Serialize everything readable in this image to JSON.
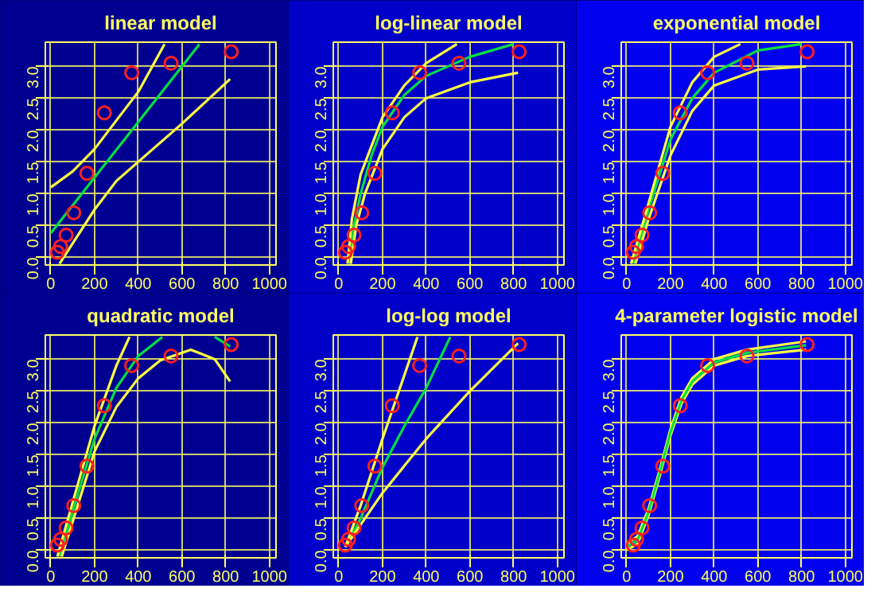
{
  "chart_data": [
    {
      "type": "line",
      "title": "linear model",
      "xlim": [
        -25,
        1030
      ],
      "ylim": [
        -0.12,
        3.38
      ],
      "xticks": [
        0,
        200,
        400,
        600,
        800,
        1000
      ],
      "yticks": [
        {
          "value": 0,
          "label": "0.0"
        },
        0.5,
        {
          "value": 1,
          "label": "1.0"
        },
        1.5,
        {
          "value": 2,
          "label": "2.0"
        },
        2.5,
        {
          "value": 3,
          "label": "3.0"
        }
      ],
      "grid": true,
      "series": [
        {
          "type": "scatter",
          "marker": "circle",
          "color": "#ff2020",
          "x": [
            30,
            45,
            70,
            105,
            165,
            245,
            370,
            550,
            825
          ],
          "values": [
            0.08,
            0.17,
            0.35,
            0.7,
            1.32,
            2.27,
            2.9,
            3.05,
            3.23
          ]
        },
        {
          "color": "#00e040",
          "x": [
            0,
            680
          ],
          "values": [
            0.38,
            3.35
          ]
        },
        {
          "color": "#ffff40",
          "x": [
            0,
            100,
            200,
            300,
            400,
            520
          ],
          "values": [
            1.1,
            1.35,
            1.7,
            2.15,
            2.6,
            3.35
          ]
        },
        {
          "color": "#ffff40",
          "x": [
            40,
            200,
            300,
            400,
            600,
            820
          ],
          "values": [
            -0.1,
            0.75,
            1.2,
            1.5,
            2.1,
            2.8
          ]
        }
      ]
    },
    {
      "type": "line",
      "title": "log-linear model",
      "xlim": [
        -25,
        1030
      ],
      "ylim": [
        -0.12,
        3.38
      ],
      "xticks": [
        0,
        200,
        400,
        600,
        800,
        1000
      ],
      "yticks": [
        {
          "value": 0,
          "label": "0.0"
        },
        0.5,
        {
          "value": 1,
          "label": "1.0"
        },
        1.5,
        {
          "value": 2,
          "label": "2.0"
        },
        2.5,
        {
          "value": 3,
          "label": "3.0"
        }
      ],
      "grid": true,
      "series": [
        {
          "type": "scatter",
          "marker": "circle",
          "color": "#ff2020",
          "x": [
            30,
            45,
            70,
            105,
            165,
            245,
            370,
            550,
            825
          ],
          "values": [
            0.08,
            0.17,
            0.35,
            0.7,
            1.32,
            2.27,
            2.9,
            3.05,
            3.23
          ]
        },
        {
          "color": "#00e040",
          "x": [
            50,
            70,
            100,
            150,
            200,
            300,
            400,
            600,
            800
          ],
          "values": [
            -0.1,
            0.5,
            1.0,
            1.6,
            2.05,
            2.55,
            2.85,
            3.15,
            3.35
          ]
        },
        {
          "color": "#ffff40",
          "x": [
            40,
            60,
            100,
            200,
            300,
            400,
            540
          ],
          "values": [
            -0.1,
            0.6,
            1.3,
            2.2,
            2.7,
            3.05,
            3.35
          ]
        },
        {
          "color": "#ffff40",
          "x": [
            55,
            80,
            120,
            200,
            300,
            400,
            600,
            820
          ],
          "values": [
            -0.1,
            0.5,
            1.0,
            1.7,
            2.2,
            2.5,
            2.75,
            2.9
          ]
        }
      ]
    },
    {
      "type": "line",
      "title": "exponential model",
      "xlim": [
        -25,
        1030
      ],
      "ylim": [
        -0.12,
        3.38
      ],
      "xticks": [
        0,
        200,
        400,
        600,
        800,
        1000
      ],
      "yticks": [
        {
          "value": 0,
          "label": "0.0"
        },
        0.5,
        {
          "value": 1,
          "label": "1.0"
        },
        1.5,
        {
          "value": 2,
          "label": "2.0"
        },
        2.5,
        {
          "value": 3,
          "label": "3.0"
        }
      ],
      "grid": true,
      "series": [
        {
          "type": "scatter",
          "marker": "circle",
          "color": "#ff2020",
          "x": [
            30,
            45,
            70,
            105,
            165,
            245,
            370,
            550,
            825
          ],
          "values": [
            0.08,
            0.17,
            0.35,
            0.7,
            1.32,
            2.27,
            2.9,
            3.05,
            3.23
          ]
        },
        {
          "color": "#00e040",
          "x": [
            30,
            100,
            200,
            300,
            400,
            600,
            800
          ],
          "values": [
            -0.1,
            0.75,
            1.85,
            2.5,
            2.9,
            3.25,
            3.35
          ]
        },
        {
          "color": "#ffff40",
          "x": [
            20,
            100,
            200,
            300,
            400,
            520
          ],
          "values": [
            -0.1,
            0.85,
            2.05,
            2.75,
            3.15,
            3.35
          ]
        },
        {
          "color": "#ffff40",
          "x": [
            40,
            100,
            200,
            300,
            400,
            600,
            820
          ],
          "values": [
            -0.1,
            0.6,
            1.6,
            2.3,
            2.7,
            2.95,
            3.0
          ]
        }
      ]
    },
    {
      "type": "line",
      "title": "quadratic model",
      "xlim": [
        -25,
        1030
      ],
      "ylim": [
        -0.12,
        3.38
      ],
      "xticks": [
        0,
        200,
        400,
        600,
        800,
        1000
      ],
      "yticks": [
        {
          "value": 0,
          "label": "0.0"
        },
        0.5,
        {
          "value": 1,
          "label": "1.0"
        },
        1.5,
        {
          "value": 2,
          "label": "2.0"
        },
        2.5,
        {
          "value": 3,
          "label": "3.0"
        }
      ],
      "grid": true,
      "series": [
        {
          "type": "scatter",
          "marker": "circle",
          "color": "#ff2020",
          "x": [
            30,
            45,
            70,
            105,
            165,
            245,
            370,
            550,
            825
          ],
          "values": [
            0.08,
            0.17,
            0.35,
            0.7,
            1.32,
            2.27,
            2.9,
            3.05,
            3.23
          ]
        },
        {
          "color": "#00e040",
          "x": [
            40,
            100,
            200,
            300,
            400,
            510,
            610,
            750,
            820
          ],
          "values": [
            -0.1,
            0.6,
            1.75,
            2.55,
            3.05,
            3.35,
            null,
            3.35,
            3.2
          ]
        },
        {
          "color": "#ffff40",
          "x": [
            30,
            100,
            200,
            300,
            360
          ],
          "values": [
            -0.1,
            0.75,
            1.95,
            2.9,
            3.35
          ]
        },
        {
          "color": "#ffff40",
          "x": [
            50,
            100,
            200,
            300,
            400,
            500,
            640,
            750,
            820
          ],
          "values": [
            -0.1,
            0.45,
            1.55,
            2.25,
            2.7,
            2.98,
            3.15,
            3.0,
            2.65
          ]
        }
      ]
    },
    {
      "type": "line",
      "title": "log-log model",
      "xlim": [
        -25,
        1030
      ],
      "ylim": [
        -0.12,
        3.38
      ],
      "xticks": [
        0,
        200,
        400,
        600,
        800,
        1000
      ],
      "yticks": [
        {
          "value": 0,
          "label": "0.0"
        },
        0.5,
        {
          "value": 1,
          "label": "1.0"
        },
        1.5,
        {
          "value": 2,
          "label": "2.0"
        },
        2.5,
        {
          "value": 3,
          "label": "3.0"
        }
      ],
      "grid": true,
      "series": [
        {
          "type": "scatter",
          "marker": "circle",
          "color": "#ff2020",
          "x": [
            30,
            45,
            70,
            105,
            165,
            245,
            370,
            550,
            825
          ],
          "values": [
            0.08,
            0.17,
            0.35,
            0.7,
            1.32,
            2.27,
            2.9,
            3.05,
            3.23
          ]
        },
        {
          "color": "#00e040",
          "x": [
            30,
            100,
            200,
            300,
            400,
            510
          ],
          "values": [
            0.05,
            0.5,
            1.3,
            1.95,
            2.55,
            3.35
          ]
        },
        {
          "color": "#ffff40",
          "x": [
            30,
            100,
            200,
            300,
            360
          ],
          "values": [
            0.05,
            0.7,
            1.75,
            2.75,
            3.35
          ]
        },
        {
          "color": "#ffff40",
          "x": [
            30,
            200,
            400,
            600,
            820
          ],
          "values": [
            0.05,
            0.9,
            1.75,
            2.5,
            3.25
          ]
        }
      ]
    },
    {
      "type": "line",
      "title": "4-parameter logistic model",
      "xlim": [
        -25,
        1030
      ],
      "ylim": [
        -0.12,
        3.38
      ],
      "xticks": [
        0,
        200,
        400,
        600,
        800,
        1000
      ],
      "yticks": [
        {
          "value": 0,
          "label": "0.0"
        },
        0.5,
        {
          "value": 1,
          "label": "1.0"
        },
        1.5,
        {
          "value": 2,
          "label": "2.0"
        },
        2.5,
        {
          "value": 3,
          "label": "3.0"
        }
      ],
      "grid": true,
      "series": [
        {
          "type": "scatter",
          "marker": "circle",
          "color": "#ff2020",
          "x": [
            30,
            45,
            70,
            105,
            165,
            245,
            370,
            550,
            825
          ],
          "values": [
            0.08,
            0.17,
            0.35,
            0.7,
            1.32,
            2.27,
            2.9,
            3.05,
            3.23
          ]
        },
        {
          "color": "#ffff40",
          "x": [
            0,
            50,
            100,
            150,
            200,
            250,
            300,
            400,
            550,
            820
          ],
          "values": [
            0.1,
            0.22,
            0.65,
            1.25,
            1.9,
            2.4,
            2.7,
            3.0,
            3.15,
            3.28
          ]
        },
        {
          "color": "#ffff40",
          "x": [
            0,
            50,
            100,
            150,
            200,
            250,
            300,
            400,
            550,
            820
          ],
          "values": [
            0.0,
            0.1,
            0.55,
            1.15,
            1.8,
            2.3,
            2.6,
            2.9,
            3.05,
            3.15
          ]
        },
        {
          "color": "#00e040",
          "x": [
            0,
            50,
            100,
            150,
            200,
            250,
            300,
            400,
            550,
            820
          ],
          "values": [
            0.05,
            0.16,
            0.6,
            1.2,
            1.85,
            2.35,
            2.65,
            2.95,
            3.1,
            3.22
          ]
        }
      ]
    }
  ]
}
